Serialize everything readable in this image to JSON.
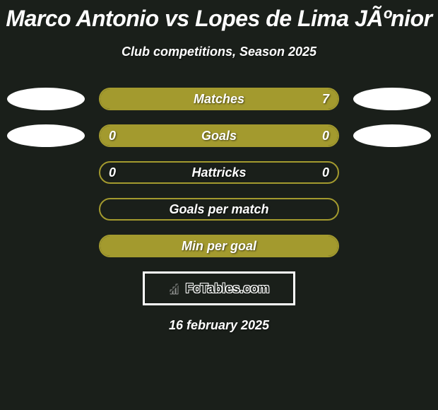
{
  "title": "Marco Antonio vs Lopes de Lima JÃºnior",
  "subtitle": "Club competitions, Season 2025",
  "stats": [
    {
      "label": "Matches",
      "left_value": "",
      "right_value": "7",
      "left_fill_pct": 0,
      "right_fill_pct": 100,
      "show_left_ellipse": true,
      "show_right_ellipse": true
    },
    {
      "label": "Goals",
      "left_value": "0",
      "right_value": "0",
      "left_fill_pct": 50,
      "right_fill_pct": 50,
      "show_left_ellipse": true,
      "show_right_ellipse": true
    },
    {
      "label": "Hattricks",
      "left_value": "0",
      "right_value": "0",
      "left_fill_pct": 0,
      "right_fill_pct": 0,
      "show_left_ellipse": false,
      "show_right_ellipse": false
    },
    {
      "label": "Goals per match",
      "left_value": "",
      "right_value": "",
      "left_fill_pct": 0,
      "right_fill_pct": 0,
      "show_left_ellipse": false,
      "show_right_ellipse": false
    },
    {
      "label": "Min per goal",
      "left_value": "",
      "right_value": "",
      "left_fill_pct": 50,
      "right_fill_pct": 50,
      "show_left_ellipse": false,
      "show_right_ellipse": false
    }
  ],
  "watermark": "FcTables.com",
  "date": "16 february 2025",
  "colors": {
    "background": "#1a1f1a",
    "bar_fill": "#a39a2e",
    "bar_border": "#a39a2e",
    "text": "#ffffff",
    "ellipse": "#ffffff"
  }
}
